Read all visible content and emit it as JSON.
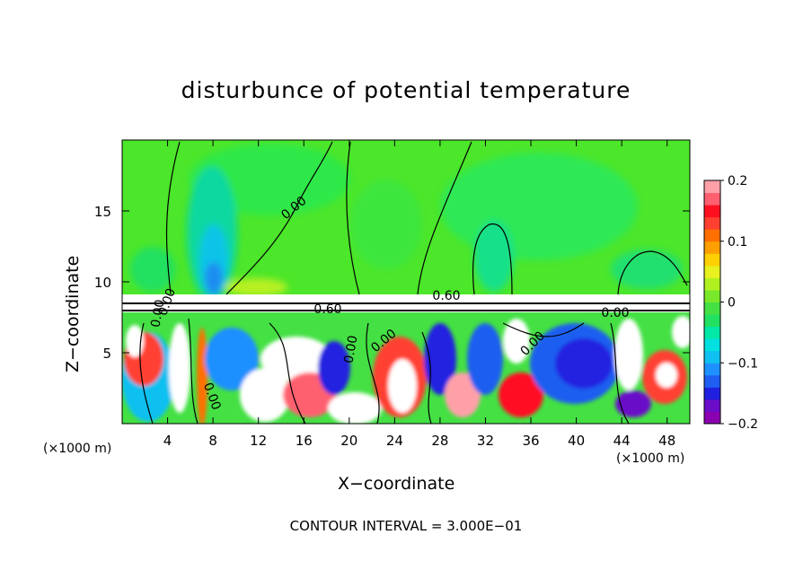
{
  "chart_data": {
    "type": "heatmap",
    "title": "disturbunce of potential temperature",
    "xlabel": "X−coordinate",
    "ylabel": "Z−coordinate",
    "x_unit_left": "(×1000 m)",
    "x_unit_right": "(×1000 m)",
    "x_ticks": [
      "4",
      "8",
      "12",
      "16",
      "20",
      "24",
      "28",
      "32",
      "36",
      "40",
      "44",
      "48"
    ],
    "x_tick_values": [
      4,
      8,
      12,
      16,
      20,
      24,
      28,
      32,
      36,
      40,
      44,
      48
    ],
    "y_ticks": [
      "5",
      "10",
      "15"
    ],
    "y_tick_values": [
      5,
      10,
      15
    ],
    "xlim": [
      0,
      50
    ],
    "ylim": [
      0,
      20
    ],
    "colorbar": {
      "min": -0.2,
      "max": 0.2,
      "tick_labels": [
        "0.2",
        "0.1",
        "0",
        "−0.1",
        "−0.2"
      ],
      "tick_values": [
        0.2,
        0.1,
        0,
        -0.1,
        -0.2
      ],
      "colors": [
        "#8b00b0",
        "#6a0cc8",
        "#2020e0",
        "#1e5ef0",
        "#1e90ff",
        "#10c0f0",
        "#00e0e0",
        "#00e8a8",
        "#22e060",
        "#44e044",
        "#7ae82a",
        "#b0f020",
        "#e8f020",
        "#ffd000",
        "#ffa000",
        "#ff7000",
        "#ff4030",
        "#ff1020",
        "#ff6070",
        "#ffa0a8"
      ]
    },
    "contour_labels": [
      "0.00",
      "0.60",
      "0.60",
      "0.00",
      "0.00",
      "0.00",
      "0.00",
      "0.00",
      "0.00",
      "0.00"
    ],
    "contour_interval_text": "CONTOUR INTERVAL = 3.000E−01"
  }
}
